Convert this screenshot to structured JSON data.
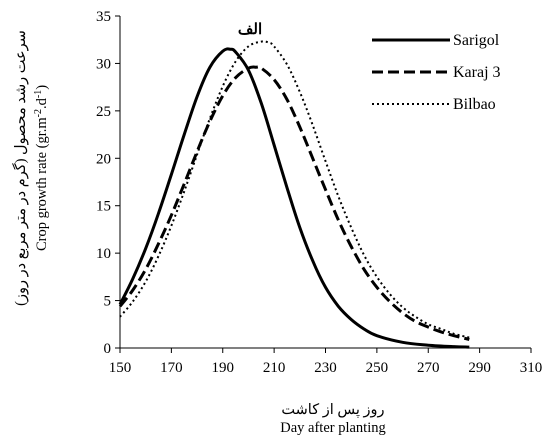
{
  "chart_data": {
    "type": "line",
    "panel_label": "الف",
    "xlabel_fa": "روز پس از کاشت",
    "xlabel_en": "Day after planting",
    "ylabel_fa": "سرعت رشد محصول (گرم در متر مربع در روز)",
    "ylabel_en_prefix": "Crop growth rate (gr.m",
    "ylabel_en_sup1": "-2",
    "ylabel_en_mid": ".d",
    "ylabel_en_sup2": "-1",
    "ylabel_en_suffix": ")",
    "xlim": [
      150,
      310
    ],
    "ylim": [
      0,
      35
    ],
    "x_ticks": [
      150,
      170,
      190,
      210,
      230,
      250,
      270,
      290,
      310
    ],
    "y_ticks": [
      0,
      5,
      10,
      15,
      20,
      25,
      30,
      35
    ],
    "grid": false,
    "legend_position": "top-right",
    "series": [
      {
        "name": "Sarigol",
        "style": "solid",
        "x": [
          150,
          155,
          160,
          165,
          170,
          175,
          180,
          185,
          190,
          193,
          195,
          200,
          205,
          210,
          215,
          220,
          225,
          230,
          235,
          240,
          245,
          250,
          260,
          270,
          280,
          286
        ],
        "y": [
          4.6,
          7.3,
          10.5,
          14.2,
          18.3,
          22.5,
          26.5,
          29.6,
          31.3,
          31.5,
          31.2,
          29.3,
          25.8,
          21.4,
          16.9,
          12.7,
          9.2,
          6.4,
          4.4,
          3.0,
          2.0,
          1.3,
          0.6,
          0.3,
          0.15,
          0.1
        ]
      },
      {
        "name": "Karaj 3",
        "style": "dashed",
        "x": [
          150,
          155,
          160,
          165,
          170,
          175,
          180,
          185,
          190,
          195,
          200,
          203,
          205,
          210,
          215,
          220,
          225,
          230,
          235,
          240,
          245,
          250,
          255,
          260,
          265,
          270,
          275,
          280,
          286
        ],
        "y": [
          4.4,
          6.1,
          8.3,
          11.0,
          14.0,
          17.3,
          20.7,
          23.9,
          26.6,
          28.5,
          29.5,
          29.6,
          29.5,
          28.3,
          26.2,
          23.3,
          20.0,
          16.7,
          13.5,
          10.7,
          8.3,
          6.4,
          4.9,
          3.7,
          2.8,
          2.2,
          1.7,
          1.3,
          0.9
        ]
      },
      {
        "name": "Bilbao",
        "style": "dotted",
        "x": [
          150,
          155,
          160,
          165,
          170,
          175,
          180,
          185,
          190,
          195,
          200,
          205,
          208,
          210,
          215,
          220,
          225,
          230,
          235,
          240,
          245,
          250,
          255,
          260,
          265,
          270,
          275,
          280,
          286
        ],
        "y": [
          3.3,
          4.9,
          7.0,
          9.7,
          12.9,
          16.5,
          20.4,
          24.2,
          27.6,
          30.2,
          31.8,
          32.3,
          32.2,
          31.8,
          29.9,
          27.0,
          23.5,
          19.7,
          16.0,
          12.7,
          9.8,
          7.5,
          5.7,
          4.3,
          3.3,
          2.5,
          2.0,
          1.5,
          1.1
        ]
      }
    ]
  }
}
